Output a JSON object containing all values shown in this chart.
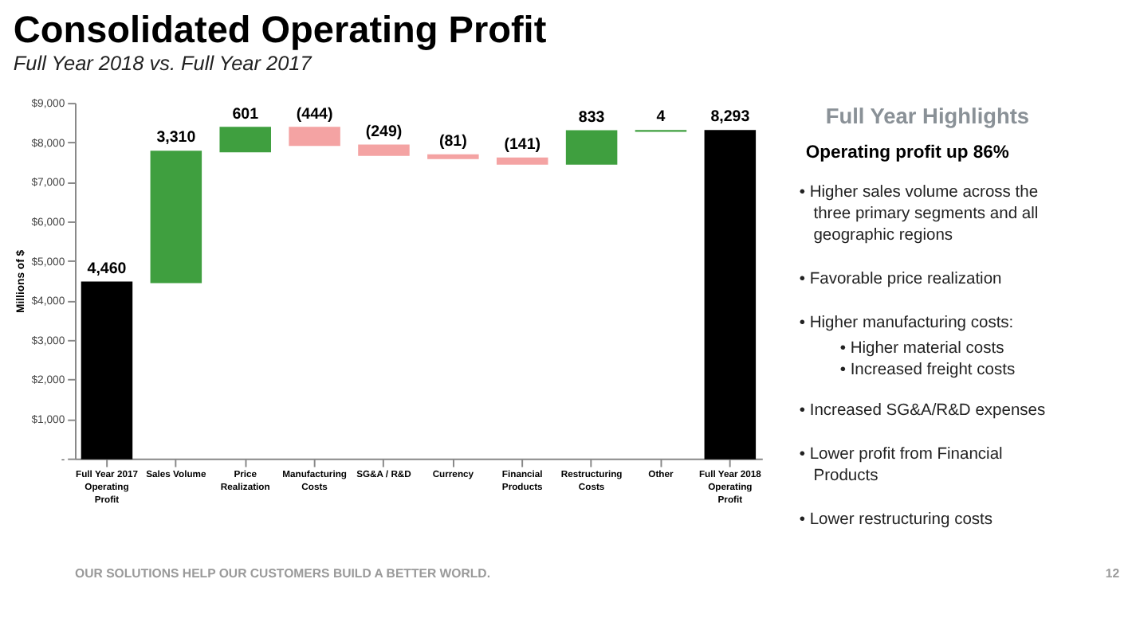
{
  "chart_data": {
    "type": "bar",
    "title": "Consolidated Operating Profit",
    "subtitle": "Full Year 2018 vs. Full Year 2017",
    "ylabel": "Millions of $",
    "categories": [
      "Full Year 2017 Operating Profit",
      "Sales Volume",
      "Price Realization",
      "Manufacturing Costs",
      "SG&A / R&D",
      "Currency",
      "Financial Products",
      "Restructuring Costs",
      "Other",
      "Full Year 2018 Operating Profit"
    ],
    "values": [
      4460,
      3310,
      601,
      -444,
      -249,
      -81,
      -141,
      833,
      4,
      8293
    ],
    "base": [
      0,
      4460,
      7770,
      8371,
      7927,
      7678,
      7597,
      7456,
      8289,
      0
    ],
    "colors": [
      "#000000",
      "#3f9f3f",
      "#3f9f3f",
      "#f4a3a3",
      "#f4a3a3",
      "#f4a3a3",
      "#f4a3a3",
      "#3f9f3f",
      "#3f9f3f",
      "#000000"
    ],
    "value_labels": [
      "4,460",
      "3,310",
      "601",
      "(444)",
      "(249)",
      "(81)",
      "(141)",
      "833",
      "4",
      "8,293"
    ],
    "ylim": [
      0,
      9000
    ],
    "yticks": [
      {
        "value": 0,
        "label": "-"
      },
      {
        "value": 1000,
        "label": "$1,000"
      },
      {
        "value": 2000,
        "label": "$2,000"
      },
      {
        "value": 3000,
        "label": "$3,000"
      },
      {
        "value": 4000,
        "label": "$4,000"
      },
      {
        "value": 5000,
        "label": "$5,000"
      },
      {
        "value": 6000,
        "label": "$6,000"
      },
      {
        "value": 7000,
        "label": "$7,000"
      },
      {
        "value": 8000,
        "label": "$8,000"
      },
      {
        "value": 9000,
        "label": "$9,000"
      }
    ],
    "grid": false,
    "annotations": [
      "Full Year Highlights",
      "Operating profit up 86%",
      "• Higher sales volume across the three primary segments and all geographic regions",
      "• Favorable price realization",
      "• Higher manufacturing costs:",
      "•    Higher material costs",
      "•    Increased freight costs",
      "• Increased SG&A/R&D expenses",
      "• Lower profit from Financial Products",
      "• Lower restructuring costs",
      "OUR SOLUTIONS HELP OUR CUSTOMERS BUILD A BETTER WORLD.",
      "12"
    ]
  }
}
